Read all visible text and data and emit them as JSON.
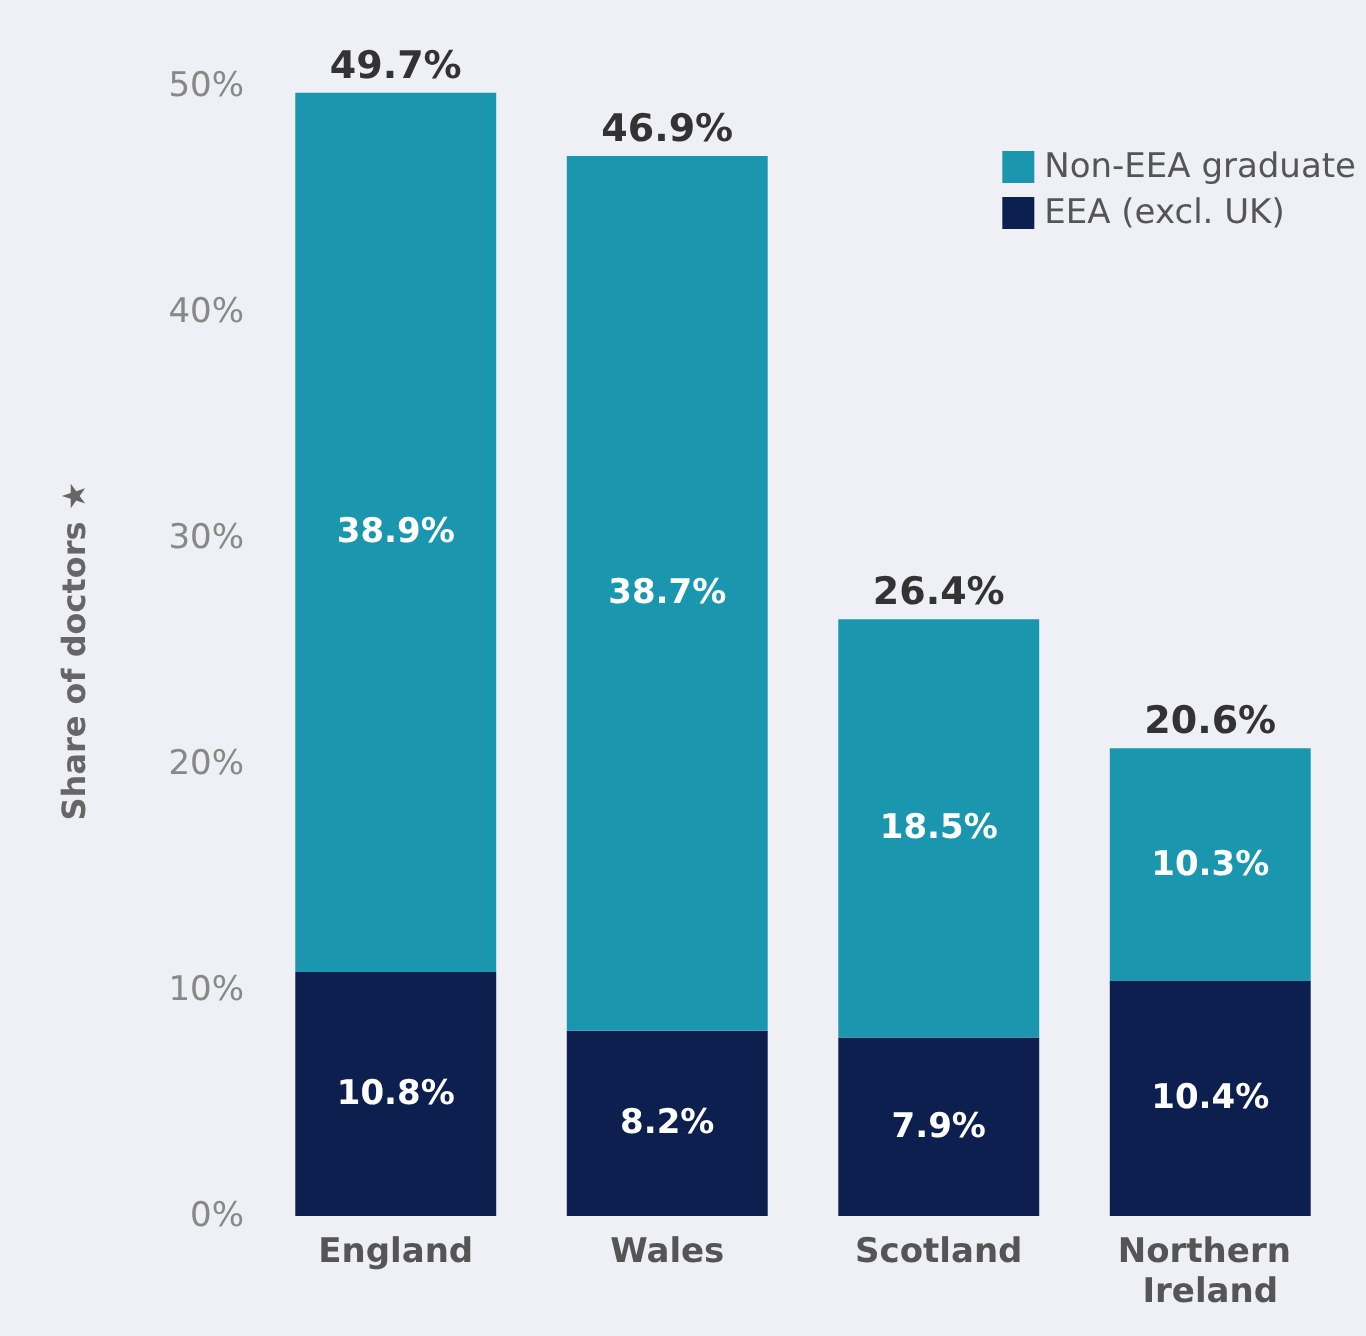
{
  "chart_data": {
    "type": "bar",
    "ylabel": "Share of doctors ★",
    "categories": [
      "England",
      "Wales",
      "Scotland",
      "Northern Ireland"
    ],
    "stacked": true,
    "series": [
      {
        "name": "EEA (excl. UK)",
        "color": "#0c1f4e",
        "values": [
          10.8,
          8.2,
          7.9,
          10.4
        ],
        "value_labels": [
          "10.8%",
          "8.2%",
          "7.9%",
          "10.4%"
        ]
      },
      {
        "name": "Non-EEA graduate",
        "color": "#1a97ae",
        "values": [
          38.9,
          38.7,
          18.5,
          10.3
        ],
        "value_labels": [
          "38.9%",
          "38.7%",
          "18.5%",
          "10.3%"
        ]
      }
    ],
    "totals": [
      "49.7%",
      "46.9%",
      "26.4%",
      "20.6%"
    ],
    "ylim": [
      0,
      50
    ],
    "yticks": [
      {
        "value": 0,
        "label": "0%"
      },
      {
        "value": 10,
        "label": "10%"
      },
      {
        "value": 20,
        "label": "20%"
      },
      {
        "value": 30,
        "label": "30%"
      },
      {
        "value": 40,
        "label": "40%"
      },
      {
        "value": 50,
        "label": "50%"
      }
    ],
    "grid": false,
    "legend": "top right"
  }
}
